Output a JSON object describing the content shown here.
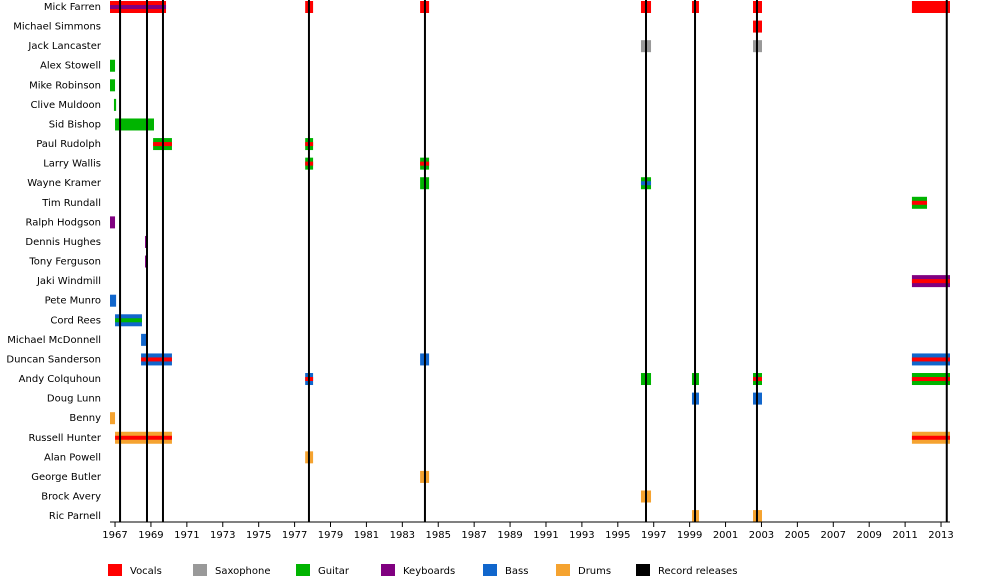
{
  "chart_data": {
    "type": "timeline",
    "xlim": [
      1966.72,
      2013.5
    ],
    "xticks": [
      1967,
      1969,
      1971,
      1973,
      1975,
      1977,
      1979,
      1981,
      1983,
      1985,
      1987,
      1989,
      1991,
      1993,
      1995,
      1997,
      1999,
      2001,
      2003,
      2005,
      2007,
      2009,
      2011,
      2013
    ],
    "roles": [
      {
        "name": "Vocals",
        "color": "#ff0000"
      },
      {
        "name": "Saxophone",
        "color": "#999999"
      },
      {
        "name": "Guitar",
        "color": "#00b400"
      },
      {
        "name": "Keyboards",
        "color": "#800080"
      },
      {
        "name": "Bass",
        "color": "#1166cc"
      },
      {
        "name": "Drums",
        "color": "#f5a330"
      }
    ],
    "releases": {
      "name": "Record releases",
      "color": "#000000",
      "x": [
        1967.28,
        1968.78,
        1969.67,
        1977.8,
        1984.26,
        1996.57,
        1999.3,
        2002.75,
        2013.32
      ]
    },
    "members": [
      {
        "name": "Mick Farren",
        "periods": [
          {
            "start": 1966.72,
            "end": 1969.84,
            "role": "Vocals",
            "also": "Keyboards"
          },
          {
            "start": 1977.59,
            "end": 1978.03,
            "role": "Vocals"
          },
          {
            "start": 1983.99,
            "end": 1984.49,
            "role": "Vocals"
          },
          {
            "start": 1996.29,
            "end": 1996.85,
            "role": "Vocals"
          },
          {
            "start": 1999.13,
            "end": 1999.52,
            "role": "Vocals"
          },
          {
            "start": 2002.53,
            "end": 2003.03,
            "role": "Vocals"
          },
          {
            "start": 2011.38,
            "end": 2013.5,
            "role": "Vocals"
          }
        ]
      },
      {
        "name": "Michael Simmons",
        "periods": [
          {
            "start": 2002.53,
            "end": 2003.03,
            "role": "Vocals"
          }
        ]
      },
      {
        "name": "Jack Lancaster",
        "periods": [
          {
            "start": 1996.29,
            "end": 1996.85,
            "role": "Saxophone"
          },
          {
            "start": 2002.53,
            "end": 2003.03,
            "role": "Saxophone"
          }
        ]
      },
      {
        "name": "Alex Stowell",
        "periods": [
          {
            "start": 1966.72,
            "end": 1967.0,
            "role": "Guitar"
          }
        ]
      },
      {
        "name": "Mike Robinson",
        "periods": [
          {
            "start": 1966.72,
            "end": 1967.0,
            "role": "Guitar"
          }
        ]
      },
      {
        "name": "Clive Muldoon",
        "periods": [
          {
            "start": 1966.94,
            "end": 1967.06,
            "role": "Guitar"
          }
        ]
      },
      {
        "name": "Sid Bishop",
        "periods": [
          {
            "start": 1967.0,
            "end": 1969.17,
            "role": "Guitar"
          }
        ]
      },
      {
        "name": "Paul Rudolph",
        "periods": [
          {
            "start": 1969.12,
            "end": 1970.17,
            "role": "Guitar",
            "also": "Vocals"
          },
          {
            "start": 1977.59,
            "end": 1978.03,
            "role": "Guitar",
            "also": "Vocals"
          }
        ]
      },
      {
        "name": "Larry Wallis",
        "periods": [
          {
            "start": 1977.59,
            "end": 1978.03,
            "role": "Guitar",
            "also": "Vocals"
          },
          {
            "start": 1983.99,
            "end": 1984.49,
            "role": "Guitar",
            "also": "Vocals"
          }
        ]
      },
      {
        "name": "Wayne Kramer",
        "periods": [
          {
            "start": 1983.99,
            "end": 1984.49,
            "role": "Guitar"
          },
          {
            "start": 1996.29,
            "end": 1996.85,
            "role": "Guitar",
            "also": "Bass"
          }
        ]
      },
      {
        "name": "Tim Rundall",
        "periods": [
          {
            "start": 2011.38,
            "end": 2012.22,
            "role": "Guitar",
            "also": "Vocals"
          }
        ]
      },
      {
        "name": "Ralph Hodgson",
        "periods": [
          {
            "start": 1966.72,
            "end": 1967.0,
            "role": "Keyboards"
          }
        ]
      },
      {
        "name": "Dennis Hughes",
        "periods": [
          {
            "start": 1968.67,
            "end": 1968.78,
            "role": "Keyboards"
          }
        ]
      },
      {
        "name": "Tony Ferguson",
        "periods": [
          {
            "start": 1968.67,
            "end": 1968.78,
            "role": "Keyboards"
          }
        ]
      },
      {
        "name": "Jaki Windmill",
        "periods": [
          {
            "start": 2011.38,
            "end": 2013.5,
            "role": "Keyboards",
            "also": "Vocals"
          }
        ]
      },
      {
        "name": "Pete Munro",
        "periods": [
          {
            "start": 1966.72,
            "end": 1967.06,
            "role": "Bass"
          }
        ]
      },
      {
        "name": "Cord Rees",
        "periods": [
          {
            "start": 1967.0,
            "end": 1968.5,
            "role": "Bass",
            "also": "Guitar"
          }
        ]
      },
      {
        "name": "Michael McDonnell",
        "periods": [
          {
            "start": 1968.45,
            "end": 1968.78,
            "role": "Bass"
          }
        ]
      },
      {
        "name": "Duncan Sanderson",
        "periods": [
          {
            "start": 1968.45,
            "end": 1970.17,
            "role": "Bass",
            "also": "Vocals"
          },
          {
            "start": 1983.99,
            "end": 1984.49,
            "role": "Bass"
          },
          {
            "start": 2011.38,
            "end": 2013.5,
            "role": "Bass",
            "also": "Vocals"
          }
        ]
      },
      {
        "name": "Andy Colquhoun",
        "periods": [
          {
            "start": 1977.59,
            "end": 1978.03,
            "role": "Bass",
            "also": "Vocals"
          },
          {
            "start": 1996.29,
            "end": 1996.85,
            "role": "Guitar"
          },
          {
            "start": 1999.13,
            "end": 1999.52,
            "role": "Guitar"
          },
          {
            "start": 2002.53,
            "end": 2003.03,
            "role": "Guitar",
            "also": "Vocals"
          },
          {
            "start": 2011.38,
            "end": 2013.5,
            "role": "Guitar",
            "also": "Vocals"
          }
        ]
      },
      {
        "name": "Doug Lunn",
        "periods": [
          {
            "start": 1999.13,
            "end": 1999.52,
            "role": "Bass"
          },
          {
            "start": 2002.53,
            "end": 2003.03,
            "role": "Bass"
          }
        ]
      },
      {
        "name": "Benny",
        "periods": [
          {
            "start": 1966.72,
            "end": 1967.0,
            "role": "Drums"
          }
        ]
      },
      {
        "name": "Russell Hunter",
        "periods": [
          {
            "start": 1967.0,
            "end": 1970.17,
            "role": "Drums",
            "also": "Vocals"
          },
          {
            "start": 2011.38,
            "end": 2013.5,
            "role": "Drums",
            "also": "Vocals"
          }
        ]
      },
      {
        "name": "Alan Powell",
        "periods": [
          {
            "start": 1977.59,
            "end": 1978.03,
            "role": "Drums"
          }
        ]
      },
      {
        "name": "George Butler",
        "periods": [
          {
            "start": 1983.99,
            "end": 1984.49,
            "role": "Drums"
          }
        ]
      },
      {
        "name": "Brock Avery",
        "periods": [
          {
            "start": 1996.29,
            "end": 1996.85,
            "role": "Drums"
          }
        ]
      },
      {
        "name": "Ric Parnell",
        "periods": [
          {
            "start": 1999.13,
            "end": 1999.52,
            "role": "Drums"
          },
          {
            "start": 2002.53,
            "end": 2003.03,
            "role": "Drums"
          }
        ]
      }
    ]
  }
}
